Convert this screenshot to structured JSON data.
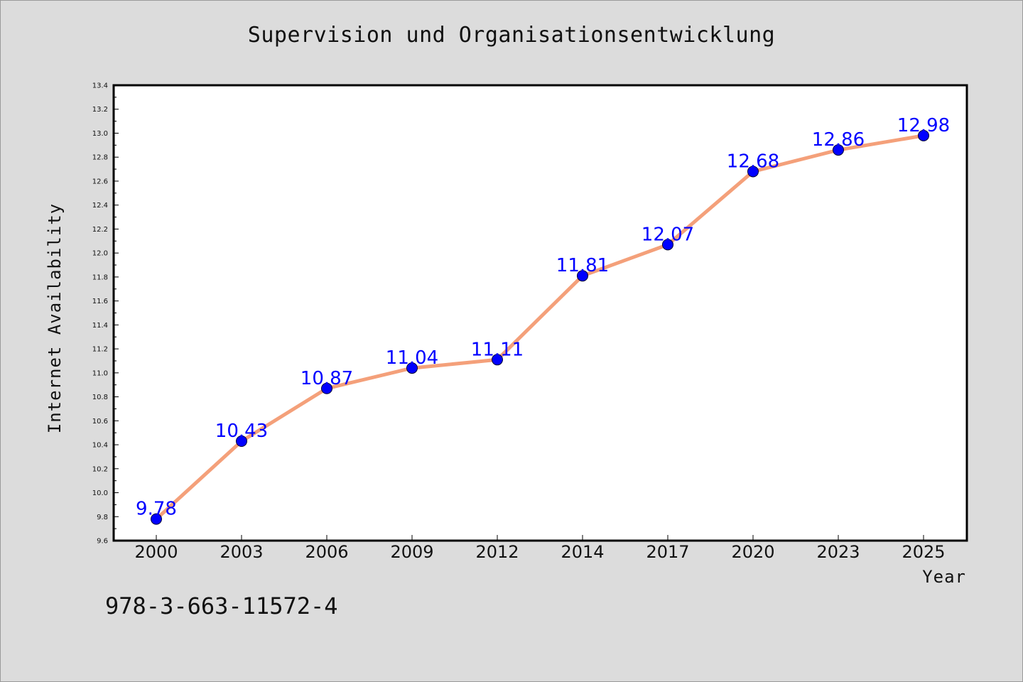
{
  "chart_data": {
    "type": "line",
    "title": "Supervision und Organisationsentwicklung",
    "xlabel": "Year",
    "ylabel": "Internet Availability",
    "categories": [
      "2000",
      "2003",
      "2006",
      "2009",
      "2012",
      "2014",
      "2017",
      "2020",
      "2023",
      "2025"
    ],
    "series": [
      {
        "values": [
          9.78,
          10.43,
          10.87,
          11.04,
          11.11,
          11.81,
          12.07,
          12.68,
          12.86,
          12.98
        ],
        "data_labels": [
          "9.78",
          "10.43",
          "10.87",
          "11.04",
          "11.11",
          "11.81",
          "12.07",
          "12.68",
          "12.86",
          "12.98"
        ]
      }
    ],
    "ylim": [
      9.6,
      13.4
    ],
    "yticks": [
      "9.6",
      "9.8",
      "10.0",
      "10.2",
      "10.4",
      "10.6",
      "10.8",
      "11.0",
      "11.2",
      "11.4",
      "11.6",
      "11.8",
      "12.0",
      "12.2",
      "12.4",
      "12.6",
      "12.8",
      "13.0",
      "13.2",
      "13.4"
    ],
    "grid": false,
    "legend": "none",
    "colors": {
      "line": "#f4a07a",
      "marker": "#0000ff",
      "data_label": "#0000ff",
      "plot_background": "#ffffff",
      "figure_background": "#dcdcdc"
    }
  },
  "footer": {
    "isbn": "978-3-663-11572-4"
  }
}
